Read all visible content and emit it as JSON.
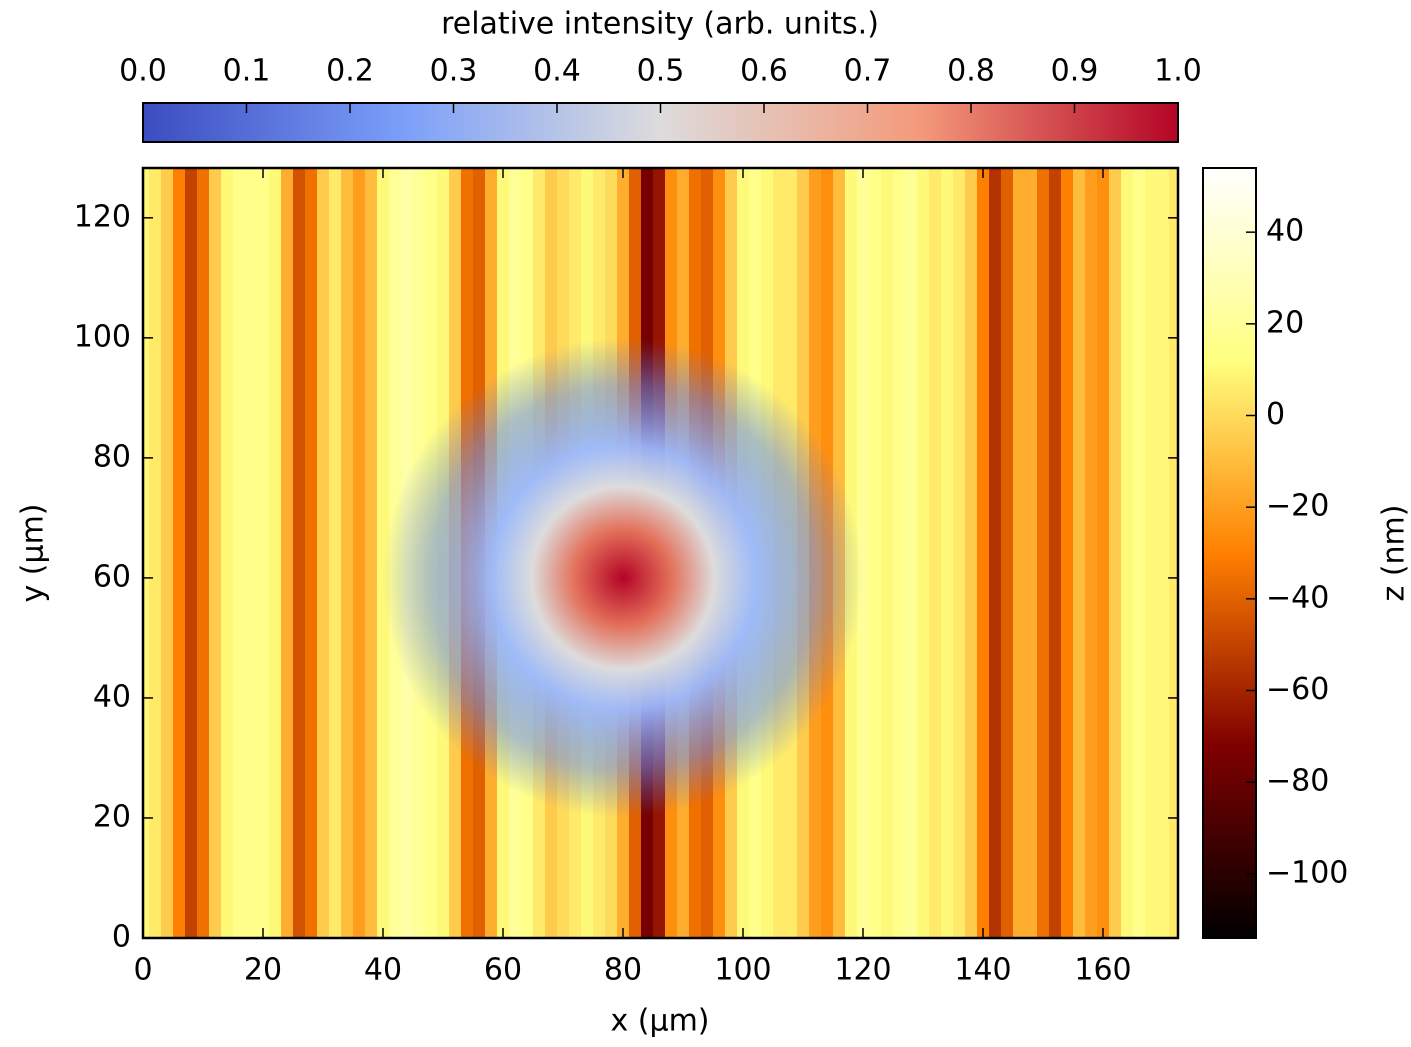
{
  "chart_data": {
    "type": "heatmap",
    "xlabel": "x (µm)",
    "ylabel": "y (µm)",
    "xlim": [
      0,
      172.5
    ],
    "ylim": [
      0,
      128.3
    ],
    "xticks": [
      0,
      20,
      40,
      60,
      80,
      100,
      120,
      140,
      160
    ],
    "yticks": [
      0,
      20,
      40,
      60,
      80,
      100,
      120
    ],
    "x": [
      0,
      2,
      4,
      6,
      8,
      10,
      12,
      14,
      16,
      18,
      20,
      22,
      24,
      26,
      28,
      30,
      32,
      34,
      36,
      38,
      40,
      42,
      44,
      46,
      48,
      50,
      52,
      54,
      56,
      58,
      60,
      62,
      64,
      66,
      68,
      70,
      72,
      74,
      76,
      78,
      80,
      82,
      84,
      86,
      88,
      90,
      92,
      94,
      96,
      98,
      100,
      102,
      104,
      106,
      108,
      110,
      112,
      114,
      116,
      118,
      120,
      122,
      124,
      126,
      128,
      130,
      132,
      134,
      136,
      138,
      140,
      142,
      144,
      146,
      148,
      150,
      152,
      154,
      156,
      158,
      160,
      162,
      164,
      166,
      168,
      170,
      172
    ],
    "values": [
      10,
      5,
      -5,
      -30,
      -50,
      -35,
      -5,
      10,
      15,
      15,
      15,
      10,
      -15,
      -45,
      -35,
      -5,
      5,
      -10,
      -20,
      -10,
      10,
      20,
      25,
      20,
      15,
      10,
      -5,
      -35,
      -40,
      -15,
      10,
      20,
      15,
      5,
      -5,
      0,
      5,
      10,
      5,
      0,
      -15,
      -40,
      -75,
      -65,
      -25,
      -15,
      -35,
      -40,
      -25,
      -5,
      10,
      15,
      10,
      5,
      5,
      -5,
      -20,
      -25,
      -10,
      10,
      20,
      15,
      10,
      15,
      20,
      10,
      5,
      10,
      5,
      -5,
      -30,
      -55,
      -40,
      -15,
      -15,
      -35,
      -50,
      -30,
      -10,
      -20,
      -25,
      -5,
      10,
      15,
      10,
      10,
      5
    ],
    "spot": {
      "x": 80,
      "y": 60,
      "radius": 40
    },
    "colorbar": {
      "label": "z (nm)",
      "lim": [
        -114,
        54
      ],
      "ticks": [
        {
          "value": -100,
          "label": "−100"
        },
        {
          "value": -80,
          "label": "−80"
        },
        {
          "value": -60,
          "label": "−60"
        },
        {
          "value": -40,
          "label": "−40"
        },
        {
          "value": -20,
          "label": "−20"
        },
        0,
        20,
        40
      ]
    },
    "intensity_colorbar": {
      "label": "relative intensity (arb. units.)",
      "lim": [
        0,
        1
      ],
      "ticks": [
        {
          "value": 0,
          "label": "0.0"
        },
        0.1,
        0.2,
        0.3,
        0.4,
        0.5,
        0.6,
        0.7,
        0.8,
        0.9,
        {
          "value": 1,
          "label": "1.0"
        }
      ]
    }
  }
}
